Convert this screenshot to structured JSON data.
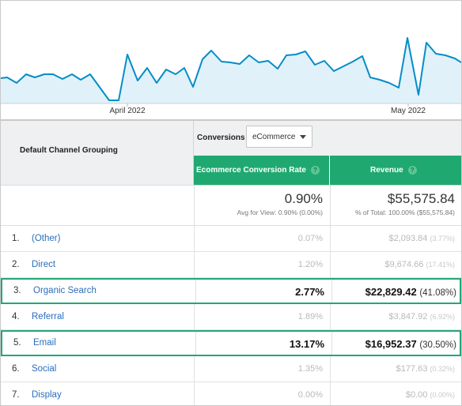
{
  "chart": {
    "x_labels": [
      "April 2022",
      "May 2022"
    ],
    "line_color": "#058dc7",
    "fill_color": "#e1f1f9"
  },
  "table": {
    "dimension_header": "Default Channel Grouping",
    "conversions_label": "Conversions",
    "conversions_select": "eCommerce",
    "columns": [
      {
        "label": "Ecommerce Conversion Rate"
      },
      {
        "label": "Revenue"
      }
    ],
    "help_icon": "?",
    "totals": {
      "rate": "0.90%",
      "rate_sub": "Avg for View: 0.90% (0.00%)",
      "revenue": "$55,575.84",
      "revenue_sub": "% of Total: 100.00% ($55,575.84)"
    },
    "rows": [
      {
        "idx": "1.",
        "channel": "(Other)",
        "rate": "0.07%",
        "revenue": "$2,093.84",
        "pct": "(3.77%)",
        "highlight": false
      },
      {
        "idx": "2.",
        "channel": "Direct",
        "rate": "1.20%",
        "revenue": "$9,674.66",
        "pct": "(17.41%)",
        "highlight": false
      },
      {
        "idx": "3.",
        "channel": "Organic Search",
        "rate": "2.77%",
        "revenue": "$22,829.42",
        "pct": "(41.08%)",
        "highlight": true
      },
      {
        "idx": "4.",
        "channel": "Referral",
        "rate": "1.89%",
        "revenue": "$3,847.92",
        "pct": "(6.92%)",
        "highlight": false
      },
      {
        "idx": "5.",
        "channel": "Email",
        "rate": "13.17%",
        "revenue": "$16,952.37",
        "pct": "(30.50%)",
        "highlight": true
      },
      {
        "idx": "6.",
        "channel": "Social",
        "rate": "1.35%",
        "revenue": "$177.63",
        "pct": "(0.32%)",
        "highlight": false
      },
      {
        "idx": "7.",
        "channel": "Display",
        "rate": "0.00%",
        "revenue": "$0.00",
        "pct": "(0.00%)",
        "highlight": false
      }
    ],
    "highlight_color": "#22a876",
    "header_color": "#1fa971"
  }
}
